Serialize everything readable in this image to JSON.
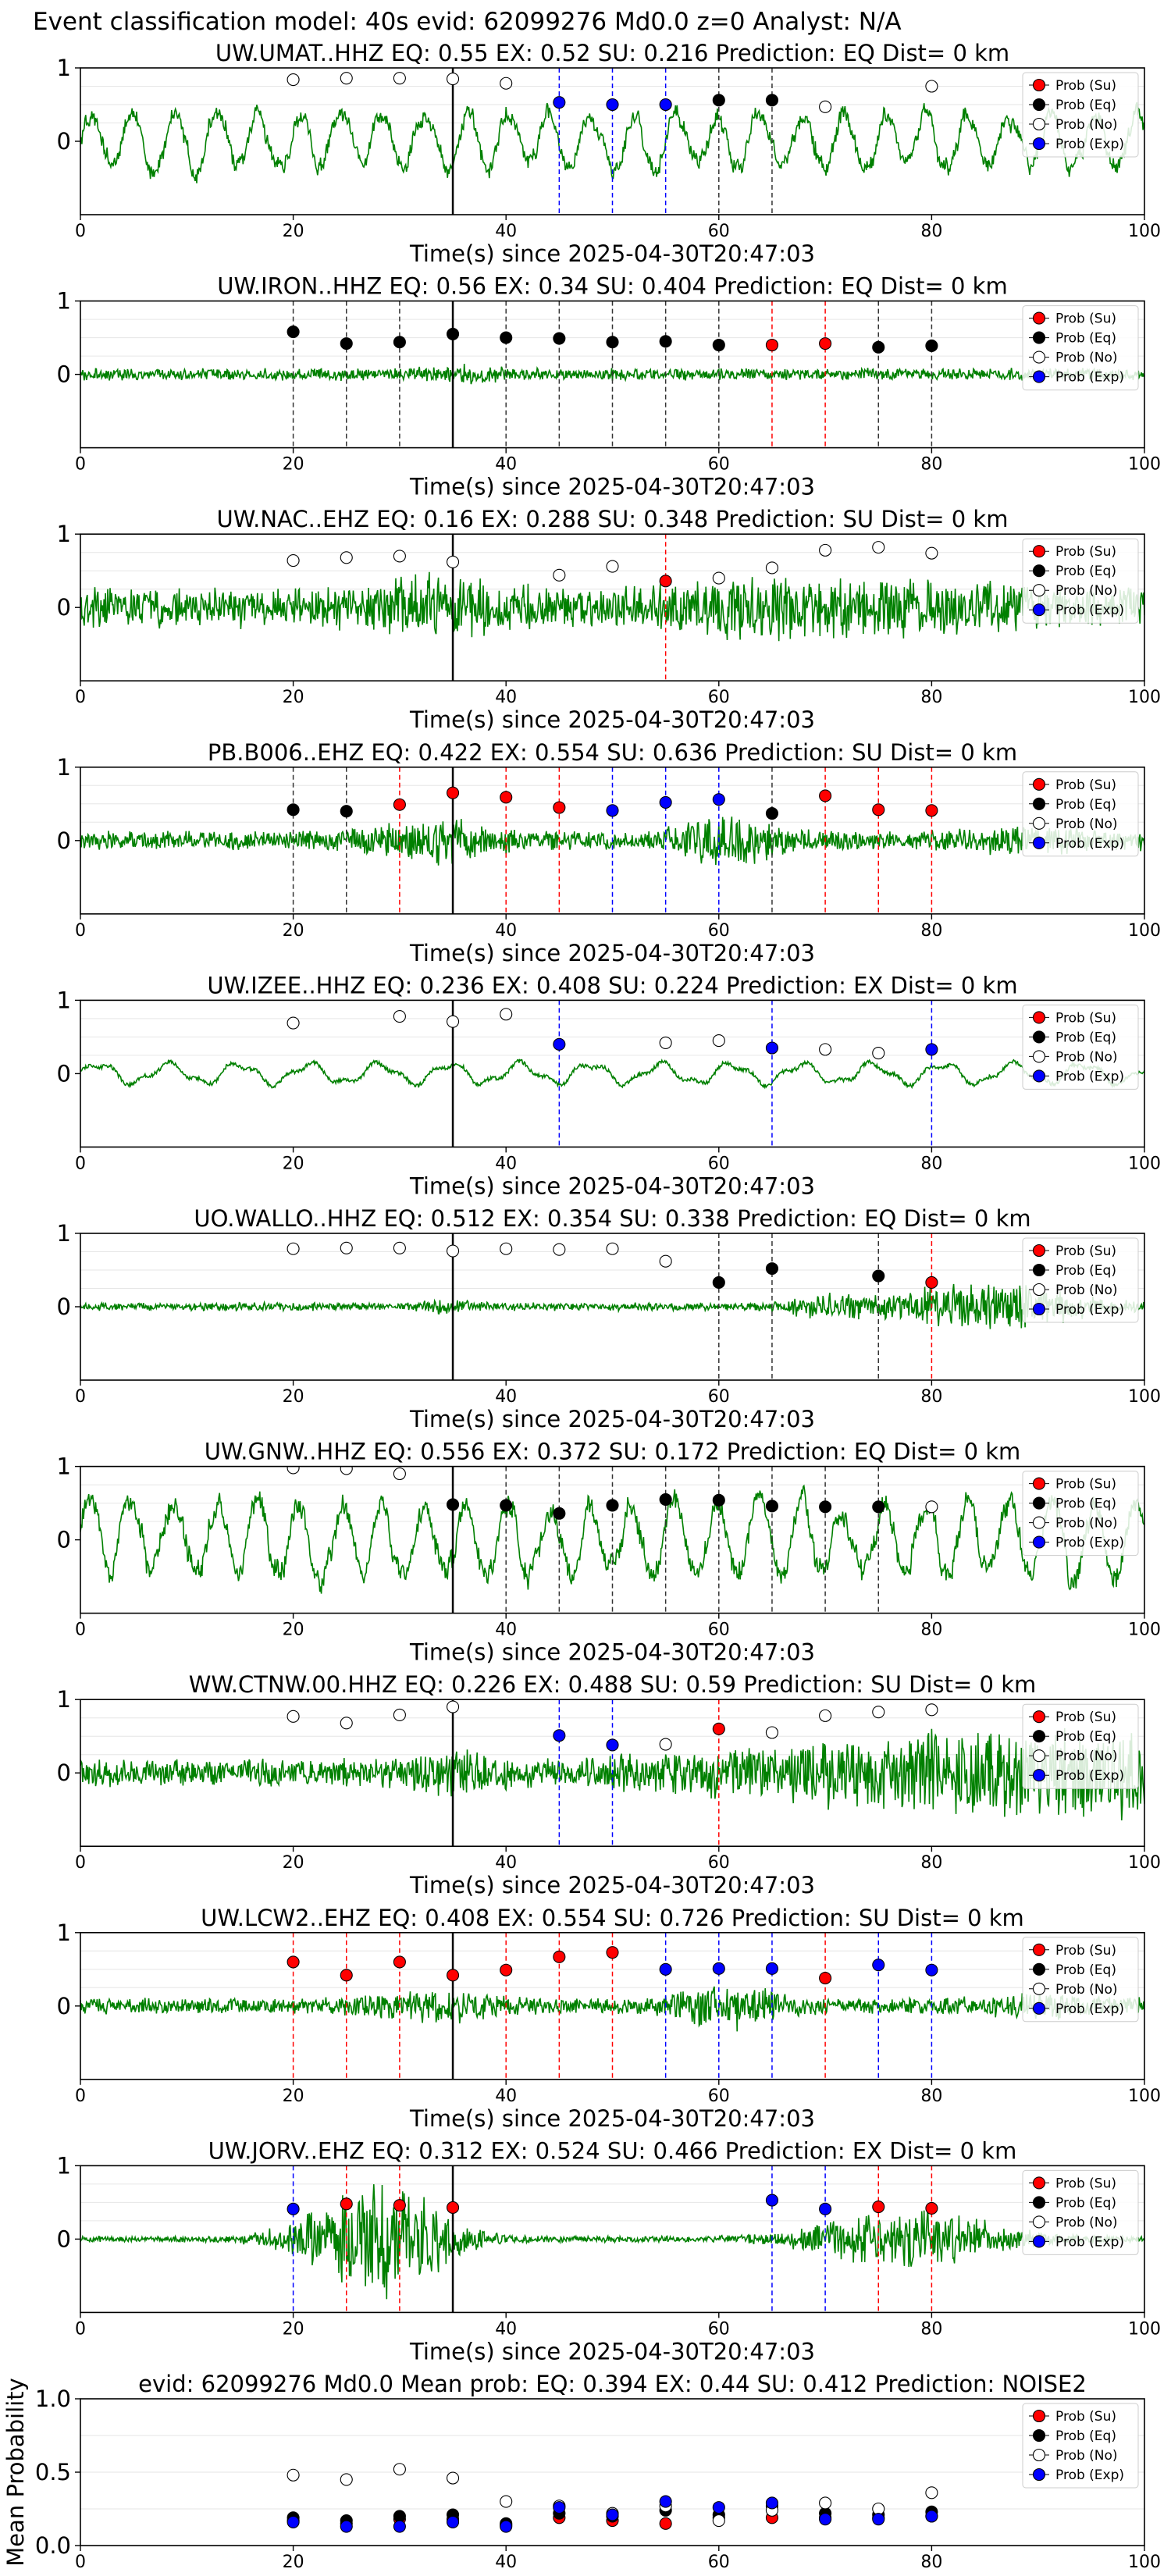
{
  "figure": {
    "suptitle": "Event classification model: 40s evid: 62099276 Md0.0 z=0 Analyst: N/A",
    "xlabel": "Time(s) since 2025-04-30T20:47:03",
    "ylabel_last": "Mean Probability",
    "legend": [
      "Prob (Su)",
      "Prob (Eq)",
      "Prob (No)",
      "Prob (Exp)"
    ],
    "colors": {
      "waveform": "#008000",
      "su": "#ff0000",
      "eq": "#000000",
      "no": "#ffffff",
      "exp": "#0000ff",
      "grid": "#e6e6e6"
    }
  },
  "chart_data": [
    {
      "type": "line+scatter",
      "title": "UW.UMAT..HHZ   EQ: 0.55  EX: 0.52  SU: 0.216   Prediction: EQ    Dist= 0 km",
      "xlim": [
        0,
        100
      ],
      "ylim": [
        -1,
        1
      ],
      "yticks": [
        0,
        1
      ],
      "xticks": [
        0,
        20,
        40,
        60,
        80,
        100
      ],
      "waveform": {
        "style": "oscillatory",
        "amplitude": 0.65
      },
      "arrival": 35,
      "points": [
        {
          "t": 20,
          "p": 0.84,
          "cls": "no"
        },
        {
          "t": 25,
          "p": 0.86,
          "cls": "no"
        },
        {
          "t": 30,
          "p": 0.86,
          "cls": "no"
        },
        {
          "t": 35,
          "p": 0.85,
          "cls": "no"
        },
        {
          "t": 40,
          "p": 0.79,
          "cls": "no"
        },
        {
          "t": 45,
          "p": 0.53,
          "cls": "exp"
        },
        {
          "t": 50,
          "p": 0.5,
          "cls": "exp"
        },
        {
          "t": 55,
          "p": 0.5,
          "cls": "exp"
        },
        {
          "t": 60,
          "p": 0.56,
          "cls": "eq"
        },
        {
          "t": 65,
          "p": 0.56,
          "cls": "eq"
        },
        {
          "t": 70,
          "p": 0.47,
          "cls": "no"
        },
        {
          "t": 80,
          "p": 0.75,
          "cls": "no"
        }
      ]
    },
    {
      "type": "line+scatter",
      "title": "UW.IRON..HHZ   EQ: 0.56  EX: 0.34  SU: 0.404   Prediction: EQ    Dist= 0 km",
      "xlim": [
        0,
        100
      ],
      "ylim": [
        -1,
        1
      ],
      "yticks": [
        0,
        1
      ],
      "xticks": [
        0,
        20,
        40,
        60,
        80,
        100
      ],
      "waveform": {
        "style": "quiet",
        "amplitude": 0.15
      },
      "arrival": 35,
      "points": [
        {
          "t": 20,
          "p": 0.58,
          "cls": "eq"
        },
        {
          "t": 25,
          "p": 0.42,
          "cls": "eq"
        },
        {
          "t": 30,
          "p": 0.44,
          "cls": "eq"
        },
        {
          "t": 35,
          "p": 0.55,
          "cls": "eq"
        },
        {
          "t": 40,
          "p": 0.5,
          "cls": "eq"
        },
        {
          "t": 45,
          "p": 0.49,
          "cls": "eq"
        },
        {
          "t": 50,
          "p": 0.44,
          "cls": "eq"
        },
        {
          "t": 55,
          "p": 0.45,
          "cls": "eq"
        },
        {
          "t": 60,
          "p": 0.4,
          "cls": "eq"
        },
        {
          "t": 65,
          "p": 0.4,
          "cls": "su"
        },
        {
          "t": 70,
          "p": 0.42,
          "cls": "su"
        },
        {
          "t": 75,
          "p": 0.37,
          "cls": "eq"
        },
        {
          "t": 80,
          "p": 0.39,
          "cls": "eq"
        }
      ]
    },
    {
      "type": "line+scatter",
      "title": "UW.NAC..EHZ   EQ: 0.16  EX: 0.288  SU: 0.348   Prediction: SU    Dist= 0 km",
      "xlim": [
        0,
        100
      ],
      "ylim": [
        -1,
        1
      ],
      "yticks": [
        0,
        1
      ],
      "xticks": [
        0,
        20,
        40,
        60,
        80,
        100
      ],
      "waveform": {
        "style": "noisy",
        "amplitude": 0.55
      },
      "arrival": 35,
      "points": [
        {
          "t": 20,
          "p": 0.64,
          "cls": "no"
        },
        {
          "t": 25,
          "p": 0.68,
          "cls": "no"
        },
        {
          "t": 30,
          "p": 0.7,
          "cls": "no"
        },
        {
          "t": 35,
          "p": 0.62,
          "cls": "no"
        },
        {
          "t": 45,
          "p": 0.44,
          "cls": "no"
        },
        {
          "t": 50,
          "p": 0.56,
          "cls": "no"
        },
        {
          "t": 55,
          "p": 0.36,
          "cls": "su"
        },
        {
          "t": 60,
          "p": 0.4,
          "cls": "no"
        },
        {
          "t": 65,
          "p": 0.54,
          "cls": "no"
        },
        {
          "t": 70,
          "p": 0.78,
          "cls": "no"
        },
        {
          "t": 75,
          "p": 0.82,
          "cls": "no"
        },
        {
          "t": 80,
          "p": 0.74,
          "cls": "no"
        }
      ]
    },
    {
      "type": "line+scatter",
      "title": "PB.B006..EHZ   EQ: 0.422  EX: 0.554  SU: 0.636   Prediction: SU    Dist= 0 km",
      "xlim": [
        0,
        100
      ],
      "ylim": [
        -1,
        1
      ],
      "yticks": [
        0,
        1
      ],
      "xticks": [
        0,
        20,
        40,
        60,
        80,
        100
      ],
      "waveform": {
        "style": "bursty",
        "amplitude": 0.35
      },
      "arrival": 35,
      "points": [
        {
          "t": 20,
          "p": 0.42,
          "cls": "eq"
        },
        {
          "t": 25,
          "p": 0.4,
          "cls": "eq"
        },
        {
          "t": 30,
          "p": 0.49,
          "cls": "su"
        },
        {
          "t": 35,
          "p": 0.65,
          "cls": "su"
        },
        {
          "t": 40,
          "p": 0.59,
          "cls": "su"
        },
        {
          "t": 45,
          "p": 0.45,
          "cls": "su"
        },
        {
          "t": 50,
          "p": 0.41,
          "cls": "exp"
        },
        {
          "t": 55,
          "p": 0.52,
          "cls": "exp"
        },
        {
          "t": 60,
          "p": 0.56,
          "cls": "exp"
        },
        {
          "t": 65,
          "p": 0.37,
          "cls": "eq"
        },
        {
          "t": 70,
          "p": 0.61,
          "cls": "su"
        },
        {
          "t": 75,
          "p": 0.42,
          "cls": "su"
        },
        {
          "t": 80,
          "p": 0.41,
          "cls": "su"
        }
      ]
    },
    {
      "type": "line+scatter",
      "title": "UW.IZEE..HHZ   EQ: 0.236  EX: 0.408  SU: 0.224   Prediction: EX    Dist= 0 km",
      "xlim": [
        0,
        100
      ],
      "ylim": [
        -1,
        1
      ],
      "yticks": [
        0,
        1
      ],
      "xticks": [
        0,
        20,
        40,
        60,
        80,
        100
      ],
      "waveform": {
        "style": "smooth",
        "amplitude": 0.18
      },
      "arrival": 35,
      "points": [
        {
          "t": 20,
          "p": 0.69,
          "cls": "no"
        },
        {
          "t": 30,
          "p": 0.78,
          "cls": "no"
        },
        {
          "t": 35,
          "p": 0.71,
          "cls": "no"
        },
        {
          "t": 40,
          "p": 0.81,
          "cls": "no"
        },
        {
          "t": 45,
          "p": 0.4,
          "cls": "exp"
        },
        {
          "t": 55,
          "p": 0.42,
          "cls": "no"
        },
        {
          "t": 60,
          "p": 0.45,
          "cls": "no"
        },
        {
          "t": 65,
          "p": 0.35,
          "cls": "exp"
        },
        {
          "t": 70,
          "p": 0.33,
          "cls": "no"
        },
        {
          "t": 75,
          "p": 0.28,
          "cls": "no"
        },
        {
          "t": 80,
          "p": 0.33,
          "cls": "exp"
        }
      ]
    },
    {
      "type": "line+scatter",
      "title": "UO.WALLO..HHZ   EQ: 0.512  EX: 0.354  SU: 0.338   Prediction: EQ    Dist= 0 km",
      "xlim": [
        0,
        100
      ],
      "ylim": [
        -1,
        1
      ],
      "yticks": [
        0,
        1
      ],
      "xticks": [
        0,
        20,
        40,
        60,
        80,
        100
      ],
      "waveform": {
        "style": "late-burst",
        "amplitude": 0.2
      },
      "arrival": 35,
      "points": [
        {
          "t": 20,
          "p": 0.79,
          "cls": "no"
        },
        {
          "t": 25,
          "p": 0.8,
          "cls": "no"
        },
        {
          "t": 30,
          "p": 0.8,
          "cls": "no"
        },
        {
          "t": 35,
          "p": 0.76,
          "cls": "no"
        },
        {
          "t": 40,
          "p": 0.79,
          "cls": "no"
        },
        {
          "t": 45,
          "p": 0.78,
          "cls": "no"
        },
        {
          "t": 50,
          "p": 0.79,
          "cls": "no"
        },
        {
          "t": 55,
          "p": 0.62,
          "cls": "no"
        },
        {
          "t": 60,
          "p": 0.33,
          "cls": "eq"
        },
        {
          "t": 65,
          "p": 0.52,
          "cls": "eq"
        },
        {
          "t": 75,
          "p": 0.42,
          "cls": "eq"
        },
        {
          "t": 80,
          "p": 0.33,
          "cls": "su"
        }
      ]
    },
    {
      "type": "line+scatter",
      "title": "UW.GNW..HHZ   EQ: 0.556  EX: 0.372  SU: 0.172   Prediction: EQ    Dist= 0 km",
      "xlim": [
        0,
        100
      ],
      "ylim": [
        -1,
        1
      ],
      "yticks": [
        0,
        1
      ],
      "xticks": [
        0,
        20,
        40,
        60,
        80,
        100
      ],
      "waveform": {
        "style": "oscillatory-large",
        "amplitude": 0.85
      },
      "arrival": 35,
      "points": [
        {
          "t": 20,
          "p": 0.98,
          "cls": "no"
        },
        {
          "t": 25,
          "p": 0.97,
          "cls": "no"
        },
        {
          "t": 30,
          "p": 0.9,
          "cls": "no"
        },
        {
          "t": 35,
          "p": 0.48,
          "cls": "eq"
        },
        {
          "t": 40,
          "p": 0.47,
          "cls": "eq"
        },
        {
          "t": 45,
          "p": 0.36,
          "cls": "eq"
        },
        {
          "t": 50,
          "p": 0.47,
          "cls": "eq"
        },
        {
          "t": 55,
          "p": 0.55,
          "cls": "eq"
        },
        {
          "t": 60,
          "p": 0.54,
          "cls": "eq"
        },
        {
          "t": 65,
          "p": 0.46,
          "cls": "eq"
        },
        {
          "t": 70,
          "p": 0.45,
          "cls": "eq"
        },
        {
          "t": 75,
          "p": 0.45,
          "cls": "eq"
        },
        {
          "t": 80,
          "p": 0.45,
          "cls": "no"
        }
      ]
    },
    {
      "type": "line+scatter",
      "title": "WW.CTNW.00.HHZ   EQ: 0.226  EX: 0.488  SU: 0.59   Prediction: SU    Dist= 0 km",
      "xlim": [
        0,
        100
      ],
      "ylim": [
        -1,
        1
      ],
      "yticks": [
        0,
        1
      ],
      "xticks": [
        0,
        20,
        40,
        60,
        80,
        100
      ],
      "waveform": {
        "style": "growing",
        "amplitude": 0.6
      },
      "arrival": 35,
      "points": [
        {
          "t": 20,
          "p": 0.77,
          "cls": "no"
        },
        {
          "t": 25,
          "p": 0.68,
          "cls": "no"
        },
        {
          "t": 30,
          "p": 0.79,
          "cls": "no"
        },
        {
          "t": 35,
          "p": 0.9,
          "cls": "no"
        },
        {
          "t": 45,
          "p": 0.51,
          "cls": "exp"
        },
        {
          "t": 50,
          "p": 0.38,
          "cls": "exp"
        },
        {
          "t": 55,
          "p": 0.39,
          "cls": "no"
        },
        {
          "t": 60,
          "p": 0.6,
          "cls": "su"
        },
        {
          "t": 65,
          "p": 0.55,
          "cls": "no"
        },
        {
          "t": 70,
          "p": 0.78,
          "cls": "no"
        },
        {
          "t": 75,
          "p": 0.83,
          "cls": "no"
        },
        {
          "t": 80,
          "p": 0.86,
          "cls": "no"
        }
      ]
    },
    {
      "type": "line+scatter",
      "title": "UW.LCW2..EHZ   EQ: 0.408  EX: 0.554  SU: 0.726   Prediction: SU    Dist= 0 km",
      "xlim": [
        0,
        100
      ],
      "ylim": [
        -1,
        1
      ],
      "yticks": [
        0,
        1
      ],
      "xticks": [
        0,
        20,
        40,
        60,
        80,
        100
      ],
      "waveform": {
        "style": "bursty",
        "amplitude": 0.3
      },
      "arrival": 35,
      "points": [
        {
          "t": 20,
          "p": 0.6,
          "cls": "su"
        },
        {
          "t": 25,
          "p": 0.42,
          "cls": "su"
        },
        {
          "t": 30,
          "p": 0.6,
          "cls": "su"
        },
        {
          "t": 35,
          "p": 0.42,
          "cls": "su"
        },
        {
          "t": 40,
          "p": 0.49,
          "cls": "su"
        },
        {
          "t": 45,
          "p": 0.67,
          "cls": "su"
        },
        {
          "t": 50,
          "p": 0.73,
          "cls": "su"
        },
        {
          "t": 55,
          "p": 0.5,
          "cls": "exp"
        },
        {
          "t": 60,
          "p": 0.51,
          "cls": "exp"
        },
        {
          "t": 65,
          "p": 0.51,
          "cls": "exp"
        },
        {
          "t": 70,
          "p": 0.38,
          "cls": "su"
        },
        {
          "t": 75,
          "p": 0.56,
          "cls": "exp"
        },
        {
          "t": 80,
          "p": 0.49,
          "cls": "exp"
        }
      ]
    },
    {
      "type": "line+scatter",
      "title": "UW.JORV..EHZ   EQ: 0.312  EX: 0.524  SU: 0.466   Prediction: EX    Dist= 0 km",
      "xlim": [
        0,
        100
      ],
      "ylim": [
        -1,
        1
      ],
      "yticks": [
        0,
        1
      ],
      "xticks": [
        0,
        20,
        40,
        60,
        80,
        100
      ],
      "waveform": {
        "style": "two-bursts",
        "amplitude": 0.9
      },
      "arrival": 35,
      "points": [
        {
          "t": 20,
          "p": 0.41,
          "cls": "exp"
        },
        {
          "t": 25,
          "p": 0.48,
          "cls": "su"
        },
        {
          "t": 30,
          "p": 0.46,
          "cls": "su"
        },
        {
          "t": 35,
          "p": 0.43,
          "cls": "su"
        },
        {
          "t": 65,
          "p": 0.53,
          "cls": "exp"
        },
        {
          "t": 70,
          "p": 0.41,
          "cls": "exp"
        },
        {
          "t": 75,
          "p": 0.44,
          "cls": "su"
        },
        {
          "t": 80,
          "p": 0.42,
          "cls": "su"
        }
      ]
    },
    {
      "type": "scatter",
      "title": "evid: 62099276  Md0.0   Mean prob:   EQ: 0.394  EX: 0.44  SU: 0.412   Prediction: NOISE2",
      "xlim": [
        0,
        100
      ],
      "ylim": [
        0,
        1
      ],
      "yticks": [
        0.0,
        0.5,
        1.0
      ],
      "ytick_labels": [
        "0.0",
        "0.5",
        "1.0"
      ],
      "xticks": [
        0,
        20,
        40,
        60,
        80,
        100
      ],
      "series": [
        {
          "name": "Prob (Su)",
          "cls": "su",
          "x": [
            20,
            25,
            30,
            35,
            40,
            45,
            50,
            55,
            60,
            65,
            70,
            75,
            80
          ],
          "y": [
            0.17,
            0.15,
            0.18,
            0.18,
            0.14,
            0.19,
            0.17,
            0.15,
            0.19,
            0.19,
            0.19,
            0.19,
            0.2
          ]
        },
        {
          "name": "Prob (Eq)",
          "cls": "eq",
          "x": [
            20,
            25,
            30,
            35,
            40,
            45,
            50,
            55,
            60,
            65,
            70,
            75,
            80
          ],
          "y": [
            0.19,
            0.17,
            0.2,
            0.21,
            0.15,
            0.22,
            0.2,
            0.24,
            0.21,
            0.27,
            0.22,
            0.21,
            0.23
          ]
        },
        {
          "name": "Prob (No)",
          "cls": "no",
          "x": [
            20,
            25,
            30,
            35,
            40,
            45,
            50,
            55,
            60,
            65,
            70,
            75,
            80
          ],
          "y": [
            0.48,
            0.45,
            0.52,
            0.46,
            0.3,
            0.27,
            0.22,
            0.27,
            0.17,
            0.24,
            0.29,
            0.25,
            0.36
          ]
        },
        {
          "name": "Prob (Exp)",
          "cls": "exp",
          "x": [
            20,
            25,
            30,
            35,
            40,
            45,
            50,
            55,
            60,
            65,
            70,
            75,
            80
          ],
          "y": [
            0.16,
            0.13,
            0.13,
            0.16,
            0.13,
            0.26,
            0.21,
            0.3,
            0.26,
            0.29,
            0.18,
            0.18,
            0.2
          ]
        }
      ]
    }
  ]
}
